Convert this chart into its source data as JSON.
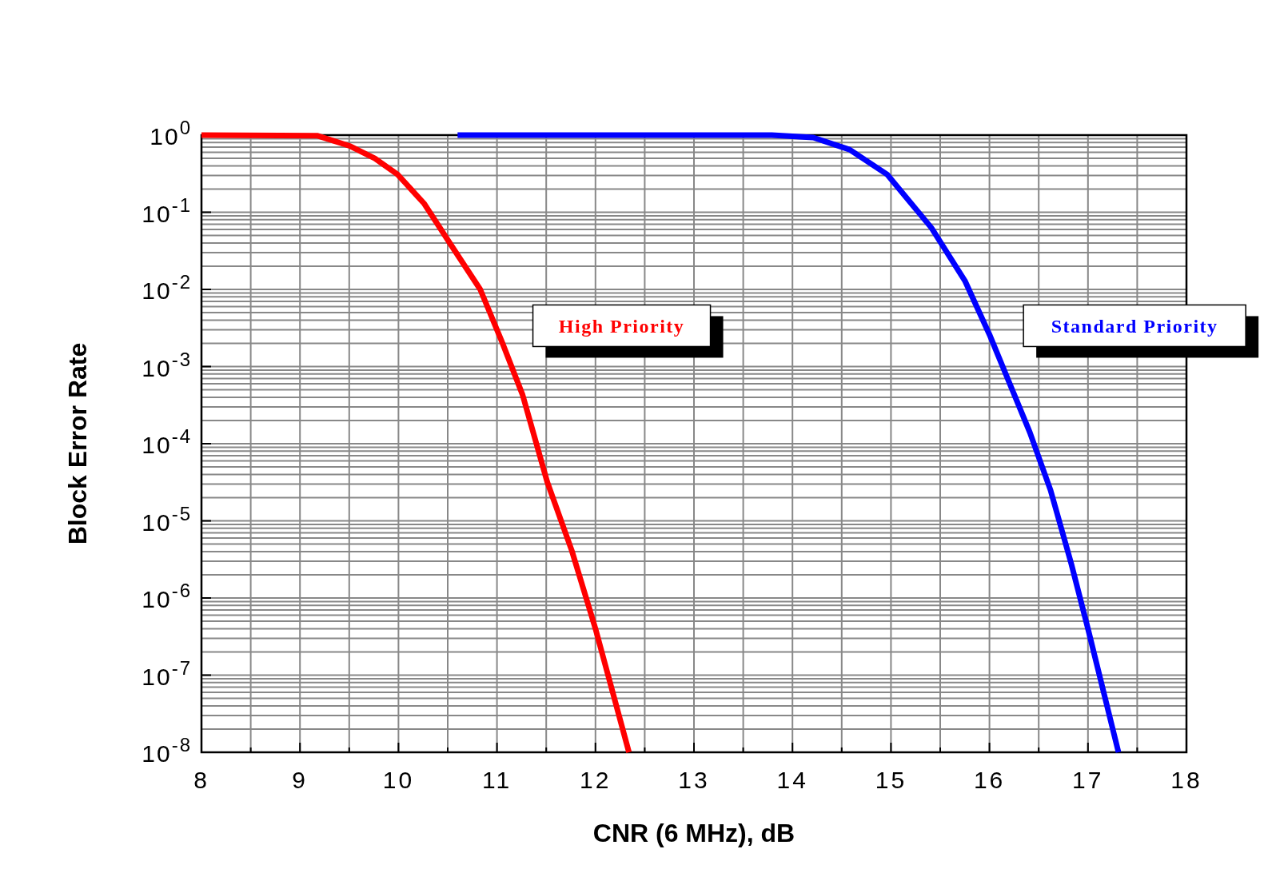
{
  "chart_data": {
    "type": "line",
    "xlabel": "CNR (6 MHz), dB",
    "ylabel": "Block Error Rate",
    "log": "y",
    "grid": true,
    "legend": false,
    "marker": "none",
    "line_style": "solid",
    "xlim": [
      8,
      18
    ],
    "ylim": [
      1e-08,
      1
    ],
    "xticks": [
      8,
      {
        "value": 8.5,
        "label": null
      },
      9,
      {
        "value": 9.5,
        "label": null
      },
      10,
      {
        "value": 10.5,
        "label": null
      },
      11,
      {
        "value": 11.5,
        "label": null
      },
      12,
      {
        "value": 12.5,
        "label": null
      },
      13,
      {
        "value": 13.5,
        "label": null
      },
      14,
      {
        "value": 14.5,
        "label": null
      },
      15,
      {
        "value": 15.5,
        "label": null
      },
      16,
      {
        "value": 16.5,
        "label": null
      },
      17,
      {
        "value": 17.5,
        "label": null
      },
      18
    ],
    "yticks": [
      {
        "value": 1,
        "label": "10$^{0}$"
      },
      {
        "value": 0.1,
        "label": "10$^{-1}$"
      },
      {
        "value": 0.01,
        "label": "10$^{-2}$"
      },
      {
        "value": 0.001,
        "label": "10$^{-3}$"
      },
      {
        "value": 0.0001,
        "label": "10$^{-4}$"
      },
      {
        "value": 1e-05,
        "label": "10$^{-5}$"
      },
      {
        "value": 1e-06,
        "label": "10$^{-6}$"
      },
      {
        "value": 1e-07,
        "label": "10$^{-7}$"
      },
      {
        "value": 1e-08,
        "label": "10$^{-8}$"
      }
    ],
    "series": [
      {
        "name": "High Priority",
        "color": "#ff0000",
        "x": [
          8,
          9.18,
          9.51,
          9.76,
          9.99,
          10.26,
          10.55,
          10.83,
          11.05,
          11.26,
          11.51,
          11.76,
          12.0,
          12.34
        ],
        "values": [
          1,
          0.98,
          0.72,
          0.5,
          0.31,
          0.13,
          0.035,
          0.01,
          0.0021,
          0.00043,
          3.2e-05,
          4.1e-06,
          4e-07,
          1e-08
        ]
      },
      {
        "name": "Standard Priority",
        "color": "#0000ff",
        "x": [
          10.6,
          13.79,
          14.21,
          14.58,
          14.96,
          15.41,
          15.75,
          16.0,
          16.41,
          16.62,
          16.83,
          17.0,
          17.31
        ],
        "values": [
          1,
          1,
          0.93,
          0.65,
          0.31,
          0.063,
          0.013,
          0.0026,
          0.00014,
          2.5e-05,
          2.8e-06,
          4e-07,
          1e-08
        ]
      }
    ]
  }
}
